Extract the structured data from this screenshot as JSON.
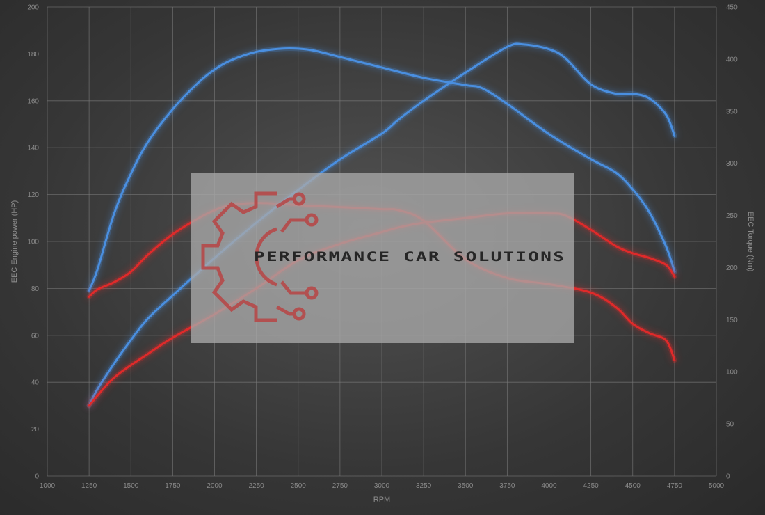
{
  "chart_data": {
    "type": "line",
    "xlabel": "RPM",
    "ylabel_left": "EEC Engine power (HP)",
    "ylabel_right": "EEC Torque (Nm)",
    "xlim": [
      1000,
      5000
    ],
    "ylim_left": [
      0,
      200
    ],
    "ylim_right": [
      0,
      450
    ],
    "grid": true,
    "x_ticks": [
      1000,
      1250,
      1500,
      1750,
      2000,
      2250,
      2500,
      2750,
      3000,
      3250,
      3500,
      3750,
      4000,
      4250,
      4500,
      4750,
      5000
    ],
    "y_ticks_left": [
      0,
      20,
      40,
      60,
      80,
      100,
      120,
      140,
      160,
      180,
      200
    ],
    "y_ticks_right": [
      0,
      50,
      100,
      150,
      200,
      250,
      300,
      350,
      400,
      450
    ],
    "series": [
      {
        "role": "tuned torque",
        "axis": "right",
        "color": "#4a8fe0",
        "x": [
          1250,
          1300,
          1400,
          1500,
          1600,
          1750,
          1900,
          2000,
          2100,
          2250,
          2400,
          2500,
          2600,
          2750,
          3000,
          3250,
          3500,
          3600,
          3750,
          4000,
          4250,
          4400,
          4500,
          4600,
          4700,
          4750
        ],
        "y": [
          178,
          198,
          252,
          290,
          320,
          352,
          377,
          390,
          399,
          407,
          410,
          410,
          408,
          402,
          392,
          382,
          375,
          372,
          357,
          328,
          304,
          291,
          275,
          253,
          220,
          196
        ]
      },
      {
        "role": "stock torque",
        "axis": "right",
        "color": "#e02a2a",
        "x": [
          1250,
          1300,
          1400,
          1500,
          1600,
          1750,
          1900,
          2000,
          2100,
          2250,
          2400,
          2500,
          2600,
          2750,
          3000,
          3100,
          3250,
          3500,
          3750,
          4000,
          4250,
          4400,
          4500,
          4600,
          4700,
          4750
        ],
        "y": [
          172,
          179,
          186,
          196,
          212,
          232,
          247,
          255,
          260,
          262,
          261,
          260,
          259,
          258,
          256,
          255,
          245,
          208,
          190,
          184,
          176,
          162,
          146,
          137,
          130,
          111
        ]
      },
      {
        "role": "tuned power",
        "axis": "left",
        "color": "#4a8fe0",
        "x": [
          1250,
          1300,
          1400,
          1500,
          1600,
          1750,
          2000,
          2250,
          2500,
          2750,
          3000,
          3100,
          3250,
          3500,
          3750,
          3850,
          4000,
          4100,
          4250,
          4400,
          4500,
          4600,
          4700,
          4750
        ],
        "y": [
          30,
          37,
          48,
          58,
          67,
          77,
          93,
          108,
          122,
          135,
          146,
          152,
          160,
          172,
          183,
          184,
          182,
          178,
          167,
          163,
          163,
          161,
          154,
          145
        ]
      },
      {
        "role": "stock power",
        "axis": "left",
        "color": "#e02a2a",
        "x": [
          1250,
          1400,
          1600,
          1750,
          2000,
          2250,
          2500,
          2750,
          3000,
          3100,
          3250,
          3500,
          3750,
          4000,
          4100,
          4250,
          4400,
          4500,
          4600,
          4700,
          4750
        ],
        "y": [
          30,
          42,
          52,
          59,
          69,
          80,
          92,
          99,
          104,
          106,
          108,
          110,
          112,
          112,
          111,
          105,
          98,
          95,
          93,
          90,
          85
        ]
      }
    ]
  },
  "watermark": {
    "brand_name": "PERFORMANCE CAR SOLUTIONS",
    "icon": "gear-circuit-icon",
    "icon_color": "#b84545",
    "box_color": "#a9a9a9"
  }
}
